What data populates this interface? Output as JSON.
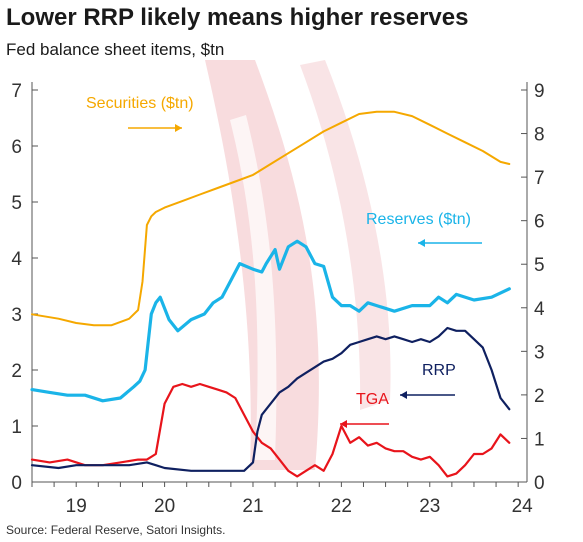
{
  "title": "Lower RRP likely means higher reserves",
  "subtitle": "Fed balance sheet items, $tn",
  "source": "Source: Federal Reserve, Satori Insights.",
  "colors": {
    "securities": "#f5a800",
    "reserves": "#1ab4e8",
    "rrp": "#0f2060",
    "tga": "#e8141b",
    "watermark": "#f4c9cd"
  },
  "chart_data": {
    "type": "line",
    "x_tick_labels": [
      "19",
      "20",
      "21",
      "22",
      "23",
      "24"
    ],
    "x_ticks": [
      2019,
      2020,
      2021,
      2022,
      2023,
      2024
    ],
    "xlim": [
      2018.5,
      2024.1
    ],
    "left_axis": {
      "ylim": [
        0,
        7
      ],
      "ticks": [
        "0",
        "1",
        "2",
        "3",
        "4",
        "5",
        "6",
        "7"
      ]
    },
    "right_axis": {
      "ylim": [
        0,
        9
      ],
      "ticks": [
        "0",
        "1",
        "2",
        "3",
        "4",
        "5",
        "6",
        "7",
        "8",
        "9"
      ]
    },
    "grid": false,
    "annotations": [
      {
        "label": "Securities ($tn)",
        "series": "securities",
        "arrow": "right"
      },
      {
        "label": "Reserves ($tn)",
        "series": "reserves",
        "arrow": "left"
      },
      {
        "label": "RRP",
        "series": "rrp",
        "arrow": "left"
      },
      {
        "label": "TGA",
        "series": "tga",
        "arrow": "left"
      }
    ],
    "series": [
      {
        "key": "securities",
        "name": "Securities ($tn)",
        "axis": "right",
        "x": [
          2018.5,
          2018.8,
          2019.0,
          2019.2,
          2019.4,
          2019.6,
          2019.7,
          2019.75,
          2019.8,
          2019.85,
          2019.9,
          2020.0,
          2020.2,
          2020.4,
          2020.6,
          2020.8,
          2021.0,
          2021.2,
          2021.4,
          2021.6,
          2021.8,
          2022.0,
          2022.2,
          2022.4,
          2022.6,
          2022.8,
          2023.0,
          2023.2,
          2023.4,
          2023.6,
          2023.8,
          2023.9
        ],
        "y": [
          3.85,
          3.75,
          3.65,
          3.6,
          3.6,
          3.75,
          3.95,
          4.6,
          5.9,
          6.1,
          6.2,
          6.3,
          6.45,
          6.6,
          6.75,
          6.9,
          7.05,
          7.3,
          7.55,
          7.8,
          8.05,
          8.25,
          8.45,
          8.5,
          8.5,
          8.4,
          8.2,
          8.0,
          7.8,
          7.6,
          7.35,
          7.3
        ]
      },
      {
        "key": "reserves",
        "name": "Reserves ($tn)",
        "axis": "left",
        "x": [
          2018.5,
          2018.7,
          2018.9,
          2019.1,
          2019.3,
          2019.5,
          2019.65,
          2019.72,
          2019.78,
          2019.85,
          2019.9,
          2019.95,
          2020.05,
          2020.15,
          2020.3,
          2020.45,
          2020.55,
          2020.65,
          2020.75,
          2020.85,
          2021.0,
          2021.1,
          2021.15,
          2021.25,
          2021.3,
          2021.4,
          2021.5,
          2021.6,
          2021.7,
          2021.8,
          2021.9,
          2022.0,
          2022.1,
          2022.2,
          2022.3,
          2022.4,
          2022.6,
          2022.8,
          2023.0,
          2023.1,
          2023.2,
          2023.3,
          2023.5,
          2023.7,
          2023.9
        ],
        "y": [
          1.65,
          1.6,
          1.55,
          1.55,
          1.45,
          1.5,
          1.7,
          1.8,
          2.0,
          3.0,
          3.2,
          3.3,
          2.9,
          2.7,
          2.9,
          3.0,
          3.2,
          3.3,
          3.6,
          3.9,
          3.8,
          3.75,
          3.9,
          4.15,
          3.8,
          4.2,
          4.3,
          4.2,
          3.9,
          3.85,
          3.3,
          3.15,
          3.15,
          3.05,
          3.2,
          3.15,
          3.05,
          3.15,
          3.15,
          3.3,
          3.2,
          3.35,
          3.25,
          3.3,
          3.45
        ]
      },
      {
        "key": "rrp",
        "name": "RRP",
        "axis": "left",
        "x": [
          2018.5,
          2018.8,
          2019.0,
          2019.3,
          2019.6,
          2019.8,
          2019.9,
          2020.0,
          2020.3,
          2020.6,
          2020.8,
          2020.9,
          2021.0,
          2021.05,
          2021.1,
          2021.2,
          2021.3,
          2021.4,
          2021.5,
          2021.6,
          2021.7,
          2021.8,
          2021.9,
          2022.0,
          2022.1,
          2022.2,
          2022.3,
          2022.4,
          2022.5,
          2022.6,
          2022.7,
          2022.8,
          2022.9,
          2023.0,
          2023.1,
          2023.2,
          2023.3,
          2023.4,
          2023.5,
          2023.6,
          2023.7,
          2023.8,
          2023.9
        ],
        "y": [
          0.3,
          0.25,
          0.3,
          0.3,
          0.3,
          0.35,
          0.3,
          0.25,
          0.2,
          0.2,
          0.2,
          0.2,
          0.35,
          0.9,
          1.2,
          1.4,
          1.6,
          1.7,
          1.85,
          1.95,
          2.05,
          2.15,
          2.2,
          2.3,
          2.45,
          2.5,
          2.55,
          2.6,
          2.55,
          2.6,
          2.55,
          2.5,
          2.55,
          2.5,
          2.6,
          2.75,
          2.7,
          2.7,
          2.55,
          2.4,
          2.0,
          1.5,
          1.3
        ]
      },
      {
        "key": "tga",
        "name": "TGA",
        "axis": "left",
        "x": [
          2018.5,
          2018.7,
          2018.9,
          2019.1,
          2019.3,
          2019.5,
          2019.7,
          2019.8,
          2019.9,
          2020.0,
          2020.1,
          2020.2,
          2020.3,
          2020.4,
          2020.5,
          2020.6,
          2020.7,
          2020.8,
          2020.9,
          2021.0,
          2021.1,
          2021.2,
          2021.3,
          2021.4,
          2021.5,
          2021.6,
          2021.7,
          2021.8,
          2021.9,
          2022.0,
          2022.1,
          2022.2,
          2022.3,
          2022.4,
          2022.5,
          2022.6,
          2022.7,
          2022.8,
          2022.9,
          2023.0,
          2023.1,
          2023.2,
          2023.3,
          2023.4,
          2023.5,
          2023.6,
          2023.7,
          2023.8,
          2023.9
        ],
        "y": [
          0.4,
          0.35,
          0.4,
          0.3,
          0.3,
          0.35,
          0.4,
          0.4,
          0.5,
          1.4,
          1.7,
          1.75,
          1.7,
          1.75,
          1.7,
          1.65,
          1.6,
          1.5,
          1.2,
          0.9,
          0.7,
          0.6,
          0.4,
          0.2,
          0.1,
          0.2,
          0.3,
          0.2,
          0.5,
          1.0,
          0.7,
          0.8,
          0.65,
          0.7,
          0.6,
          0.55,
          0.55,
          0.45,
          0.4,
          0.45,
          0.3,
          0.1,
          0.15,
          0.3,
          0.5,
          0.5,
          0.6,
          0.85,
          0.7
        ]
      }
    ]
  }
}
